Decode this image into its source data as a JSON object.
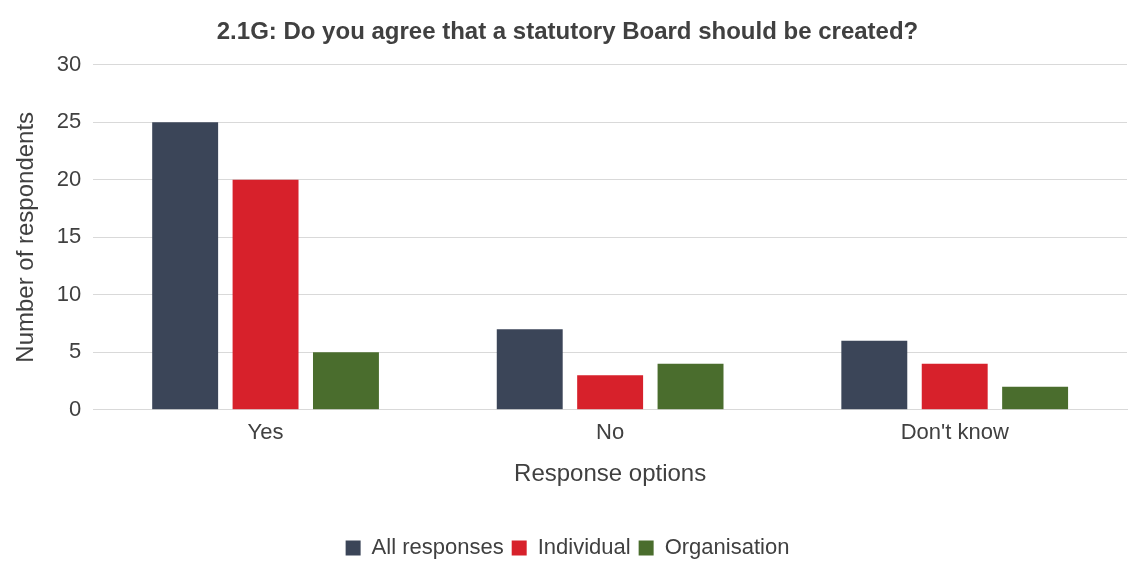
{
  "chart_data": {
    "type": "bar",
    "title": "2.1G: Do you agree that a statutory Board should be created?",
    "xlabel": "Response options",
    "ylabel": "Number of respondents",
    "categories": [
      "Yes",
      "No",
      "Don't know"
    ],
    "series": [
      {
        "name": "All responses",
        "color": "#3b4558",
        "values": [
          25,
          7,
          6
        ]
      },
      {
        "name": "Individual",
        "color": "#d7212b",
        "values": [
          20,
          3,
          4
        ]
      },
      {
        "name": "Organisation",
        "color": "#4a6d2d",
        "values": [
          5,
          4,
          2
        ]
      }
    ],
    "ylim": [
      0,
      30
    ],
    "yticks": [
      0,
      5,
      10,
      15,
      20,
      25,
      30
    ],
    "grid": "y",
    "legend": "bottom"
  }
}
